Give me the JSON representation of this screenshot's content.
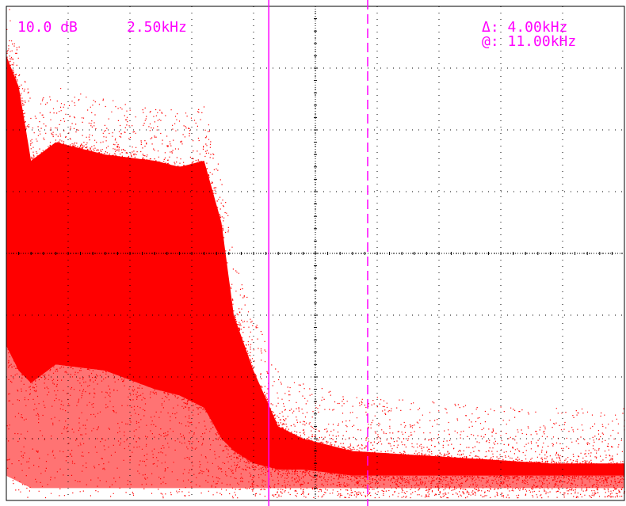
{
  "readouts": {
    "vertical_scale": "10.0 dB",
    "horizontal_scale": "2.50kHz",
    "delta": "Δ: 4.00kHz",
    "at": "@: 11.00kHz"
  },
  "colors": {
    "background": "#ffffff",
    "grid": "#000000",
    "trace": "#ff0000",
    "cursor": "#ff00ff"
  },
  "cursors": {
    "solid_cursor_khz": 11.0,
    "dashed_cursor_khz": 15.0,
    "delta_khz": 4.0
  },
  "chart_data": {
    "type": "scatter",
    "x_unit": "kHz",
    "y_unit": "dB",
    "x_per_div_khz": 2.5,
    "y_per_div_db": 10.0,
    "divisions": {
      "x": 10,
      "y": 8
    },
    "xlim": [
      0,
      25
    ],
    "ylim_divisions_from_top": [
      0,
      8
    ],
    "grid": true,
    "grid_style": "dotted",
    "spectrum_envelope": {
      "description_free": true,
      "x_khz": [
        0.0,
        0.5,
        1.0,
        2.0,
        4.0,
        6.0,
        7.0,
        8.0,
        8.7,
        9.2,
        10.0,
        11.0,
        12.0,
        14.0,
        18.0,
        22.0,
        25.0
      ],
      "upper_div": [
        0.8,
        1.3,
        2.5,
        2.2,
        2.4,
        2.5,
        2.6,
        2.5,
        3.5,
        5.0,
        5.9,
        6.8,
        7.0,
        7.2,
        7.3,
        7.4,
        7.4
      ],
      "lower_div": [
        5.5,
        5.9,
        6.1,
        5.8,
        5.9,
        6.2,
        6.3,
        6.5,
        7.0,
        7.2,
        7.4,
        7.5,
        7.5,
        7.6,
        7.6,
        7.6,
        7.6
      ],
      "floor_div": [
        7.6,
        7.7,
        7.8,
        7.8,
        7.8,
        7.8,
        7.8,
        7.8,
        7.8,
        7.8,
        7.8,
        7.8,
        7.8,
        7.8,
        7.8,
        7.8,
        7.8
      ]
    }
  }
}
